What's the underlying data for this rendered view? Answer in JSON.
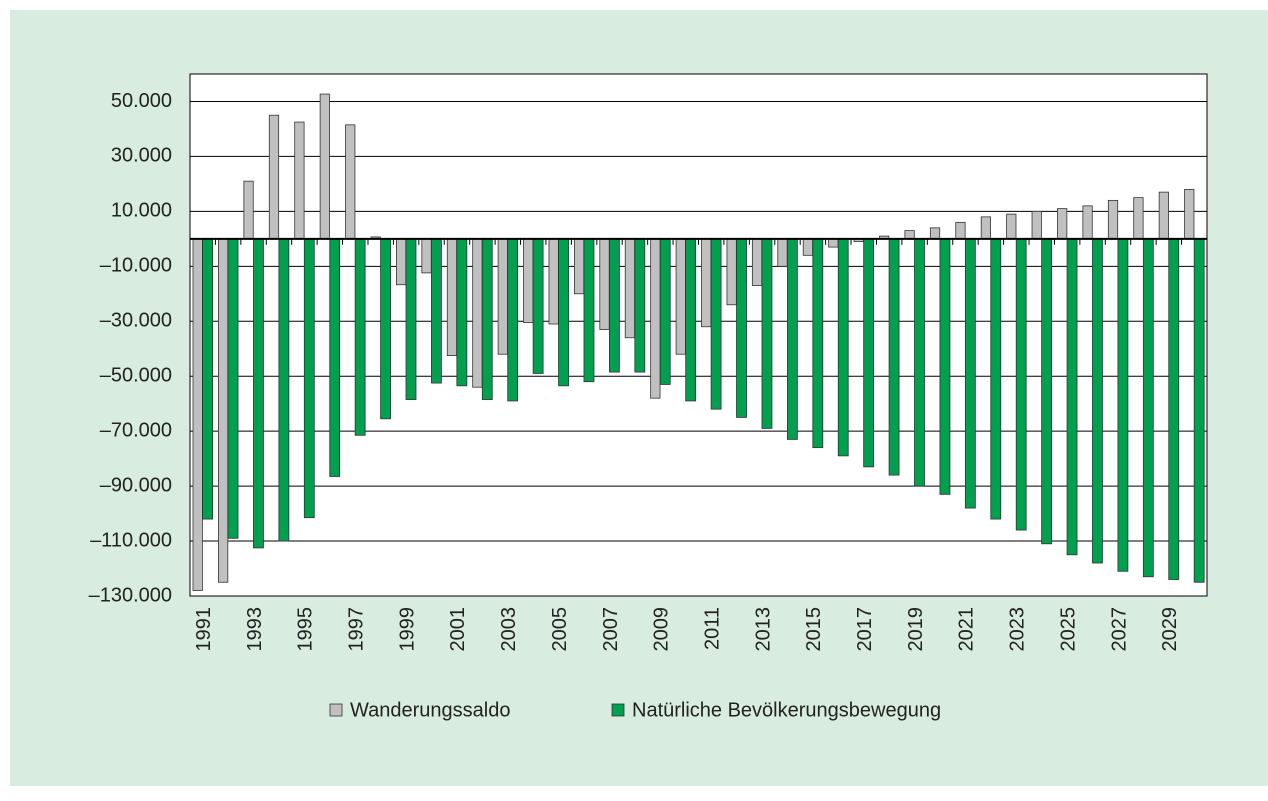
{
  "chart_data": {
    "type": "bar",
    "categories": [
      "1991",
      null,
      "1993",
      null,
      "1995",
      null,
      "1997",
      null,
      "1999",
      null,
      "2001",
      null,
      "2003",
      null,
      "2005",
      null,
      "2007",
      null,
      "2009",
      null,
      "2011",
      null,
      "2013",
      null,
      "2015",
      null,
      "2017",
      null,
      "2019",
      null,
      "2021",
      null,
      "2023",
      null,
      "2025",
      null,
      "2027",
      null,
      "2029",
      null
    ],
    "series": [
      {
        "name": "Wanderungssaldo",
        "color": "#c0c0c0",
        "values": [
          -128000,
          -125000,
          21000,
          45000,
          42500,
          52700,
          41500,
          700,
          -16700,
          -12400,
          -42500,
          -54000,
          -42000,
          -30500,
          -31000,
          -20000,
          -33000,
          -36000,
          -58000,
          -42000,
          -32000,
          -24000,
          -17000,
          -10000,
          -6000,
          -3000,
          -1000,
          1000,
          3000,
          4000,
          6000,
          8000,
          9000,
          10000,
          11000,
          12000,
          14000,
          15000,
          17000,
          18000
        ]
      },
      {
        "name": "Natürliche Bevölkerungsbewegung",
        "color": "#00a04e",
        "values": [
          -102000,
          -109000,
          -112500,
          -110000,
          -101500,
          -86500,
          -71500,
          -65500,
          -58500,
          -52500,
          -53500,
          -58500,
          -59000,
          -49000,
          -53500,
          -52000,
          -48500,
          -48500,
          -53000,
          -59000,
          -62000,
          -65000,
          -69000,
          -73000,
          -76000,
          -79000,
          -83000,
          -86000,
          -90000,
          -93000,
          -98000,
          -102000,
          -106000,
          -111000,
          -115000,
          -118000,
          -121000,
          -123000,
          -124000,
          -125000
        ]
      }
    ],
    "ylim": [
      -130000,
      60000
    ],
    "yticks": [
      {
        "value": 50000,
        "label": "50.000"
      },
      {
        "value": 30000,
        "label": "30.000"
      },
      {
        "value": 10000,
        "label": "10.000"
      },
      {
        "value": -10000,
        "label": "–10.000"
      },
      {
        "value": -30000,
        "label": "–30.000"
      },
      {
        "value": -50000,
        "label": "–50.000"
      },
      {
        "value": -70000,
        "label": "–70.000"
      },
      {
        "value": -90000,
        "label": "–90.000"
      },
      {
        "value": -110000,
        "label": "–110.000"
      },
      {
        "value": -130000,
        "label": "–130.000"
      }
    ],
    "grid": true,
    "legend": "bottom"
  }
}
